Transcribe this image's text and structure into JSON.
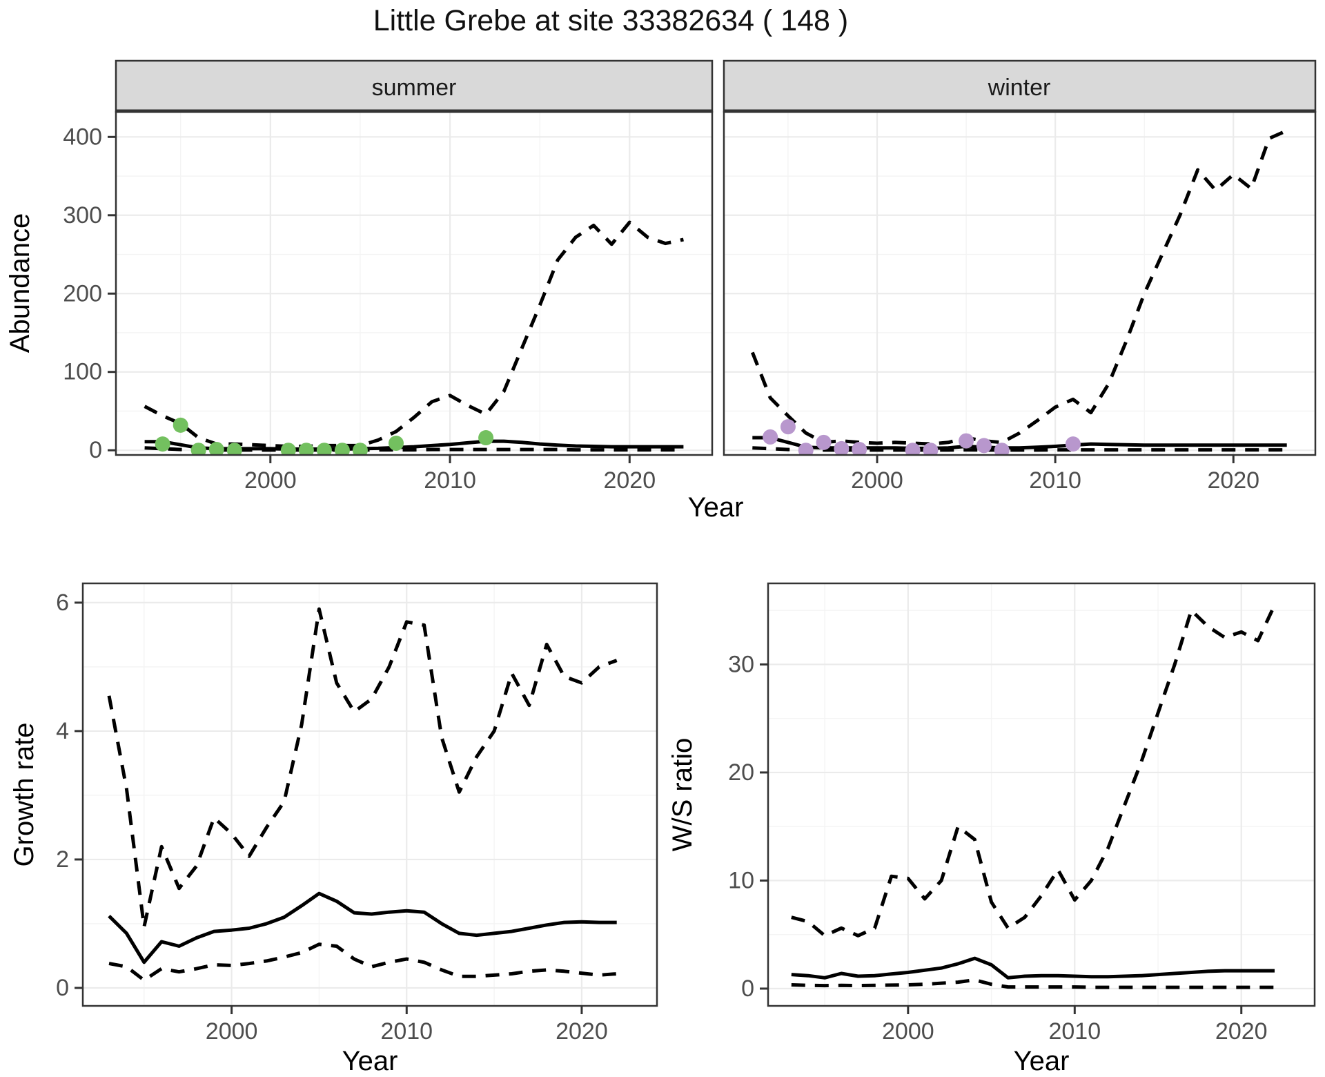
{
  "title": "Little Grebe at site 33382634 ( 148 )",
  "colors": {
    "observed_summer": "#73C05F",
    "observed_winter": "#B897CD",
    "line": "#000000",
    "strip_background": "#d9d9d9",
    "grid_major": "#ebebeb",
    "tick_text": "#4d4d4d",
    "panel_border": "#333333"
  },
  "chart_data": [
    {
      "id": "abundance_summer",
      "type": "line",
      "facet_label": "summer",
      "ylabel": "Abundance",
      "xlabel": "Year",
      "xlim": [
        1991.4,
        2024.6
      ],
      "ylim": [
        -6,
        432
      ],
      "xticks": [
        2000,
        2010,
        2020
      ],
      "xminor": [
        1995,
        2005,
        2015
      ],
      "yticks": [
        0,
        100,
        200,
        300,
        400
      ],
      "yminor": [
        50,
        150,
        250,
        350
      ],
      "grid": true,
      "legend": "none",
      "series": [
        {
          "name": "upper_ci",
          "style": "dashed",
          "x": [
            1993,
            1994,
            1995,
            1996,
            1997,
            1998,
            1999,
            2000,
            2001,
            2002,
            2003,
            2004,
            2005,
            2006,
            2007,
            2008,
            2009,
            2010,
            2011,
            2012,
            2013,
            2014,
            2015,
            2016,
            2017,
            2018,
            2019,
            2020,
            2021,
            2022,
            2023
          ],
          "y": [
            56,
            44,
            34,
            16,
            8,
            8,
            7,
            6,
            5,
            5,
            6,
            6,
            6,
            13,
            24,
            42,
            62,
            70,
            57,
            46,
            75,
            130,
            185,
            243,
            272,
            287,
            263,
            291,
            272,
            264,
            269
          ]
        },
        {
          "name": "fit",
          "style": "solid",
          "x": [
            1993,
            1994,
            1995,
            1996,
            1997,
            1998,
            1999,
            2000,
            2001,
            2002,
            2003,
            2004,
            2005,
            2006,
            2007,
            2008,
            2009,
            2010,
            2011,
            2012,
            2013,
            2014,
            2015,
            2016,
            2017,
            2018,
            2019,
            2020,
            2021,
            2022,
            2023
          ],
          "y": [
            11,
            11,
            7,
            3,
            2,
            2,
            2,
            2,
            1.5,
            1.5,
            1.5,
            1.5,
            2,
            2.5,
            3.5,
            4.5,
            6,
            7.5,
            9.5,
            11.5,
            11.5,
            10,
            8,
            6.5,
            5.5,
            5,
            4.5,
            4.5,
            4.5,
            4.5,
            4.5
          ]
        },
        {
          "name": "lower_ci",
          "style": "dashed",
          "x": [
            1993,
            1994,
            1995,
            1996,
            1997,
            1998,
            1999,
            2000,
            2001,
            2002,
            2003,
            2004,
            2005,
            2006,
            2007,
            2008,
            2009,
            2010,
            2011,
            2012,
            2013,
            2014,
            2015,
            2016,
            2017,
            2018,
            2019,
            2020,
            2021,
            2022,
            2023
          ],
          "y": [
            3,
            2,
            1,
            0.5,
            0.3,
            0.3,
            0.3,
            0.3,
            0.3,
            0.3,
            0.3,
            0.3,
            0.3,
            0.5,
            0.5,
            0.5,
            1,
            1,
            1,
            1,
            1,
            1,
            1,
            1,
            0.5,
            0.5,
            0.5,
            0.5,
            0.5,
            0.5,
            0.5
          ]
        },
        {
          "name": "observed",
          "style": "points",
          "color": "#73C05F",
          "x": [
            1994,
            1995,
            1996,
            1997,
            1998,
            2001,
            2002,
            2003,
            2004,
            2005,
            2007,
            2012
          ],
          "y": [
            8,
            32,
            0,
            1,
            0,
            0,
            0,
            0,
            0,
            0,
            9,
            16
          ]
        }
      ]
    },
    {
      "id": "abundance_winter",
      "type": "line",
      "facet_label": "winter",
      "ylabel": "Abundance",
      "xlabel": "Year",
      "xlim": [
        1991.4,
        2024.6
      ],
      "ylim": [
        -6,
        432
      ],
      "xticks": [
        2000,
        2010,
        2020
      ],
      "xminor": [
        1995,
        2005,
        2015
      ],
      "yticks": [
        0,
        100,
        200,
        300,
        400
      ],
      "yminor": [
        50,
        150,
        250,
        350
      ],
      "grid": true,
      "legend": "none",
      "series": [
        {
          "name": "upper_ci",
          "style": "dashed",
          "x": [
            1993,
            1994,
            1995,
            1996,
            1997,
            1998,
            1999,
            2000,
            2001,
            2002,
            2003,
            2004,
            2005,
            2006,
            2007,
            2008,
            2009,
            2010,
            2011,
            2012,
            2013,
            2014,
            2015,
            2016,
            2017,
            2018,
            2019,
            2020,
            2021,
            2022,
            2023
          ],
          "y": [
            125,
            67,
            44,
            22,
            10,
            12,
            10,
            9,
            10,
            9,
            8,
            10,
            16,
            12,
            10,
            22,
            38,
            55,
            65,
            48,
            85,
            140,
            200,
            250,
            300,
            358,
            332,
            352,
            334,
            398,
            408
          ]
        },
        {
          "name": "fit",
          "style": "solid",
          "x": [
            1993,
            1994,
            1995,
            1996,
            1997,
            1998,
            1999,
            2000,
            2001,
            2002,
            2003,
            2004,
            2005,
            2006,
            2007,
            2008,
            2009,
            2010,
            2011,
            2012,
            2013,
            2014,
            2015,
            2016,
            2017,
            2018,
            2019,
            2020,
            2021,
            2022,
            2023
          ],
          "y": [
            16,
            16,
            10,
            4,
            3,
            3,
            3,
            3,
            3,
            2.5,
            2.5,
            3,
            5,
            4,
            3,
            3,
            4,
            5,
            6.5,
            8,
            7.5,
            7,
            6.5,
            6.5,
            6.5,
            6.5,
            6.5,
            6.5,
            6.5,
            6.5,
            6.5
          ]
        },
        {
          "name": "lower_ci",
          "style": "dashed",
          "x": [
            1993,
            1994,
            1995,
            1996,
            1997,
            1998,
            1999,
            2000,
            2001,
            2002,
            2003,
            2004,
            2005,
            2006,
            2007,
            2008,
            2009,
            2010,
            2011,
            2012,
            2013,
            2014,
            2015,
            2016,
            2017,
            2018,
            2019,
            2020,
            2021,
            2022,
            2023
          ],
          "y": [
            3,
            2,
            1,
            0.5,
            0.3,
            0.3,
            0.3,
            0.3,
            0.3,
            0.3,
            0.3,
            0.3,
            0.5,
            0.3,
            0.3,
            0.3,
            0.3,
            0.5,
            0.5,
            0.5,
            0.5,
            0.5,
            0.5,
            0.5,
            0.5,
            0.5,
            0.5,
            0.5,
            0.5,
            0.5,
            0.5
          ]
        },
        {
          "name": "observed",
          "style": "points",
          "color": "#B897CD",
          "x": [
            1994,
            1995,
            1996,
            1997,
            1998,
            1999,
            2002,
            2003,
            2005,
            2006,
            2007,
            2011
          ],
          "y": [
            17,
            30,
            0,
            10,
            2,
            1,
            0,
            0,
            12,
            6,
            0,
            8
          ]
        }
      ]
    },
    {
      "id": "growth_rate",
      "type": "line",
      "facet_label": "",
      "ylabel": "Growth rate",
      "xlabel": "Year",
      "xlim": [
        1991.5,
        2024.3
      ],
      "ylim": [
        -0.28,
        6.3
      ],
      "xticks": [
        2000,
        2010,
        2020
      ],
      "xminor": [
        1995,
        2005,
        2015
      ],
      "yticks": [
        0,
        2,
        4,
        6
      ],
      "yminor": [
        1,
        3,
        5
      ],
      "grid": true,
      "legend": "none",
      "series": [
        {
          "name": "upper_ci",
          "style": "dashed",
          "x": [
            1993,
            1994,
            1995,
            1996,
            1997,
            1998,
            1999,
            2000,
            2001,
            2002,
            2003,
            2004,
            2005,
            2006,
            2007,
            2008,
            2009,
            2010,
            2011,
            2012,
            2013,
            2014,
            2015,
            2016,
            2017,
            2018,
            2019,
            2020,
            2021,
            2022
          ],
          "y": [
            4.55,
            3.1,
            0.95,
            2.2,
            1.55,
            1.9,
            2.65,
            2.4,
            2.05,
            2.5,
            2.9,
            4.1,
            5.9,
            4.75,
            4.3,
            4.5,
            5.0,
            5.7,
            5.65,
            3.9,
            3.05,
            3.6,
            4.0,
            4.9,
            4.4,
            5.35,
            4.85,
            4.75,
            5.0,
            5.1
          ]
        },
        {
          "name": "fit",
          "style": "solid",
          "x": [
            1993,
            1994,
            1995,
            1996,
            1997,
            1998,
            1999,
            2000,
            2001,
            2002,
            2003,
            2004,
            2005,
            2006,
            2007,
            2008,
            2009,
            2010,
            2011,
            2012,
            2013,
            2014,
            2015,
            2016,
            2017,
            2018,
            2019,
            2020,
            2021,
            2022
          ],
          "y": [
            1.12,
            0.85,
            0.4,
            0.72,
            0.65,
            0.78,
            0.88,
            0.9,
            0.93,
            1.0,
            1.1,
            1.28,
            1.47,
            1.35,
            1.17,
            1.15,
            1.18,
            1.2,
            1.18,
            1.0,
            0.85,
            0.82,
            0.85,
            0.88,
            0.93,
            0.98,
            1.02,
            1.03,
            1.02,
            1.02
          ]
        },
        {
          "name": "lower_ci",
          "style": "dashed",
          "x": [
            1993,
            1994,
            1995,
            1996,
            1997,
            1998,
            1999,
            2000,
            2001,
            2002,
            2003,
            2004,
            2005,
            2006,
            2007,
            2008,
            2009,
            2010,
            2011,
            2012,
            2013,
            2014,
            2015,
            2016,
            2017,
            2018,
            2019,
            2020,
            2021,
            2022
          ],
          "y": [
            0.38,
            0.33,
            0.12,
            0.3,
            0.25,
            0.3,
            0.36,
            0.35,
            0.38,
            0.42,
            0.48,
            0.55,
            0.68,
            0.65,
            0.45,
            0.33,
            0.4,
            0.45,
            0.4,
            0.28,
            0.18,
            0.18,
            0.2,
            0.22,
            0.26,
            0.28,
            0.26,
            0.23,
            0.2,
            0.22
          ]
        }
      ]
    },
    {
      "id": "ws_ratio",
      "type": "line",
      "facet_label": "",
      "ylabel": "W/S ratio",
      "xlabel": "Year",
      "xlim": [
        1991.6,
        2024.4
      ],
      "ylim": [
        -1.6,
        37.5
      ],
      "xticks": [
        2000,
        2010,
        2020
      ],
      "xminor": [
        1995,
        2005,
        2015
      ],
      "yticks": [
        0,
        10,
        20,
        30
      ],
      "yminor": [
        5,
        15,
        25,
        35
      ],
      "grid": true,
      "legend": "none",
      "series": [
        {
          "name": "upper_ci",
          "style": "dashed",
          "x": [
            1993,
            1994,
            1995,
            1996,
            1997,
            1998,
            1999,
            2000,
            2001,
            2002,
            2003,
            2004,
            2005,
            2006,
            2007,
            2008,
            2009,
            2010,
            2011,
            2012,
            2013,
            2014,
            2015,
            2016,
            2017,
            2018,
            2019,
            2020,
            2021,
            2022
          ],
          "y": [
            6.6,
            6.2,
            4.9,
            5.6,
            4.9,
            5.6,
            10.4,
            10.2,
            8.3,
            10.0,
            15.0,
            13.8,
            8.0,
            5.6,
            6.6,
            8.6,
            11.0,
            8.2,
            10.0,
            13.0,
            17.0,
            21.0,
            25.5,
            30.0,
            35.0,
            33.5,
            32.5,
            33.0,
            32.2,
            35.5
          ]
        },
        {
          "name": "fit",
          "style": "solid",
          "x": [
            1993,
            1994,
            1995,
            1996,
            1997,
            1998,
            1999,
            2000,
            2001,
            2002,
            2003,
            2004,
            2005,
            2006,
            2007,
            2008,
            2009,
            2010,
            2011,
            2012,
            2013,
            2014,
            2015,
            2016,
            2017,
            2018,
            2019,
            2020,
            2021,
            2022
          ],
          "y": [
            1.3,
            1.2,
            1.0,
            1.4,
            1.15,
            1.2,
            1.35,
            1.5,
            1.7,
            1.9,
            2.3,
            2.8,
            2.2,
            1.0,
            1.15,
            1.2,
            1.2,
            1.15,
            1.1,
            1.1,
            1.15,
            1.2,
            1.3,
            1.4,
            1.5,
            1.6,
            1.65,
            1.65,
            1.65,
            1.65
          ]
        },
        {
          "name": "lower_ci",
          "style": "dashed",
          "x": [
            1993,
            1994,
            1995,
            1996,
            1997,
            1998,
            1999,
            2000,
            2001,
            2002,
            2003,
            2004,
            2005,
            2006,
            2007,
            2008,
            2009,
            2010,
            2011,
            2012,
            2013,
            2014,
            2015,
            2016,
            2017,
            2018,
            2019,
            2020,
            2021,
            2022
          ],
          "y": [
            0.35,
            0.3,
            0.28,
            0.3,
            0.28,
            0.3,
            0.32,
            0.35,
            0.4,
            0.5,
            0.6,
            0.8,
            0.4,
            0.15,
            0.15,
            0.15,
            0.15,
            0.15,
            0.12,
            0.12,
            0.12,
            0.12,
            0.12,
            0.12,
            0.12,
            0.12,
            0.12,
            0.12,
            0.12,
            0.12
          ]
        }
      ]
    }
  ]
}
